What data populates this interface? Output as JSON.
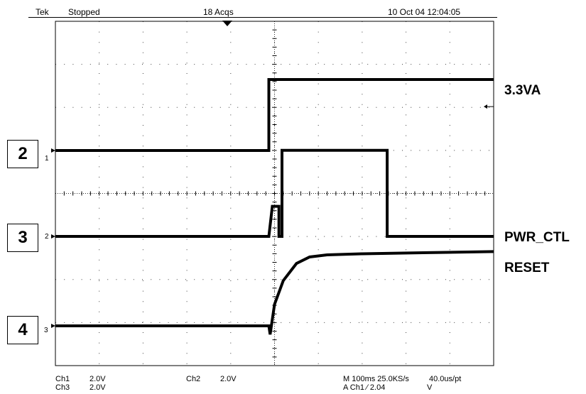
{
  "header": {
    "brand": "Tek",
    "state": "Stopped",
    "acqs": "18 Acqs",
    "datetime": "10 Oct 04 12:04:05"
  },
  "chart_data": {
    "type": "line",
    "title": "",
    "xlabel": "",
    "ylabel": "",
    "grid": true,
    "xlim": [
      0,
      1000
    ],
    "x_unit": "ms",
    "x_div": 100,
    "y_div_V": 2.0,
    "series": [
      {
        "name": "3.3VA",
        "channel": "Ch1",
        "marker": "1",
        "label_box": "2",
        "points": [
          [
            0,
            0
          ],
          [
            487,
            0
          ],
          [
            487,
            3.3
          ],
          [
            1000,
            3.3
          ]
        ]
      },
      {
        "name": "PWR_CTL",
        "channel": "Ch2",
        "marker": "2",
        "label_box": "3",
        "points": [
          [
            0,
            0
          ],
          [
            487,
            0
          ],
          [
            495,
            1.4
          ],
          [
            510,
            1.4
          ],
          [
            510,
            0
          ],
          [
            517,
            0
          ],
          [
            517,
            4.0
          ],
          [
            757,
            4.0
          ],
          [
            757,
            0
          ],
          [
            1000,
            0
          ]
        ]
      },
      {
        "name": "RESET",
        "channel": "Ch3",
        "marker": "3",
        "label_box": "4",
        "points": [
          [
            0,
            0
          ],
          [
            487,
            0
          ],
          [
            490,
            -0.4
          ],
          [
            500,
            1.0
          ],
          [
            520,
            2.1
          ],
          [
            550,
            2.9
          ],
          [
            580,
            3.2
          ],
          [
            620,
            3.3
          ],
          [
            700,
            3.35
          ],
          [
            850,
            3.4
          ],
          [
            1000,
            3.45
          ]
        ]
      }
    ],
    "trigger": {
      "time_ms": 487,
      "level_V": 2.04,
      "source": "Ch1"
    }
  },
  "readout": {
    "r1c1": "Ch1",
    "r1c2": "2.0V",
    "r1c3": "Ch2",
    "r1c4": "2.0V",
    "r1c5": "M 100ms 25.0KS/s",
    "r1c6": "40.0us/pt",
    "r2c1": "Ch3",
    "r2c2": "2.0V",
    "r2c5": "A Ch1 ∕ 2.04",
    "r2c6": "V"
  },
  "colors": {
    "trace": "#000000",
    "grid": "#000000",
    "background": "#ffffff"
  }
}
